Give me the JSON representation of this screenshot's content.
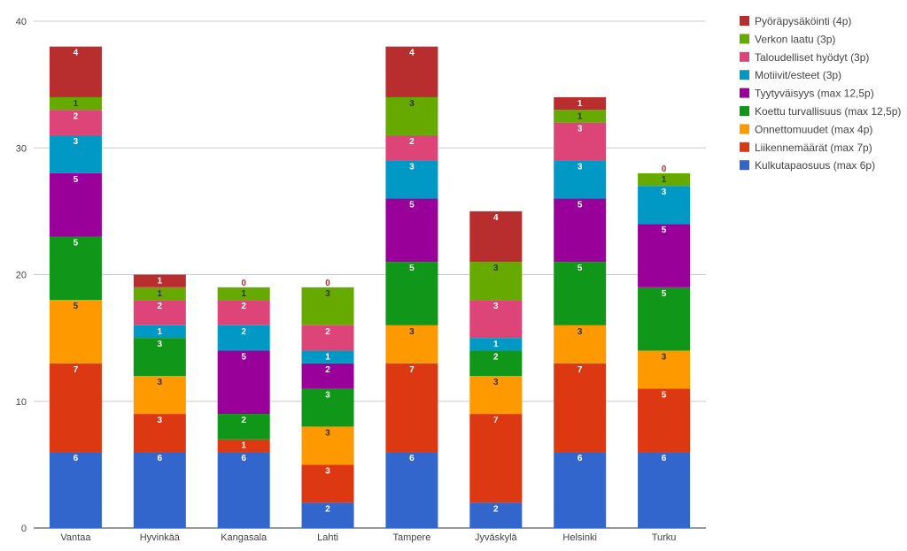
{
  "chart_data": {
    "type": "bar",
    "stacked": true,
    "categories": [
      "Vantaa",
      "Hyvinkää",
      "Kangasala",
      "Lahti",
      "Tampere",
      "Jyväskylä",
      "Helsinki",
      "Turku"
    ],
    "series": [
      {
        "name": "Kulkutapaosuus (max 6p)",
        "color": "#3366cc",
        "values": [
          6,
          6,
          6,
          2,
          6,
          2,
          6,
          6
        ]
      },
      {
        "name": "Liikennemäärät (max 7p)",
        "color": "#dc3912",
        "values": [
          7,
          3,
          1,
          3,
          7,
          7,
          7,
          5
        ]
      },
      {
        "name": "Onnettomuudet (max 4p)",
        "color": "#ff9900",
        "values": [
          5,
          3,
          0,
          3,
          3,
          3,
          3,
          3
        ]
      },
      {
        "name": "Koettu turvallisuus (max 12,5p)",
        "color": "#109618",
        "values": [
          5,
          3,
          2,
          3,
          5,
          2,
          5,
          5
        ]
      },
      {
        "name": "Tyytyväisyys (max 12,5p)",
        "color": "#990099",
        "values": [
          5,
          0,
          5,
          2,
          5,
          0,
          5,
          5
        ]
      },
      {
        "name": "Motiivit/esteet (3p)",
        "color": "#0099c6",
        "values": [
          3,
          1,
          2,
          1,
          3,
          1,
          3,
          3
        ]
      },
      {
        "name": "Taloudelliset hyödyt (3p)",
        "color": "#dd4477",
        "values": [
          2,
          2,
          2,
          2,
          2,
          3,
          3,
          0
        ]
      },
      {
        "name": "Verkon laatu (3p)",
        "color": "#66aa00",
        "values": [
          1,
          1,
          1,
          3,
          3,
          3,
          1,
          1
        ]
      },
      {
        "name": "Pyöräpysäköinti (4p)",
        "color": "#b82e2e",
        "values": [
          4,
          1,
          0,
          0,
          4,
          4,
          1,
          0
        ]
      }
    ],
    "ylim": [
      0,
      40
    ],
    "yticks": [
      0,
      10,
      20,
      30,
      40
    ],
    "grid": true,
    "legend_position": "right",
    "title": "",
    "xlabel": "",
    "ylabel": ""
  }
}
